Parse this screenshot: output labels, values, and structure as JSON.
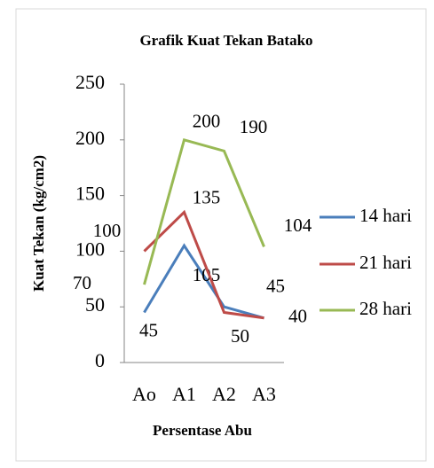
{
  "chart_data": {
    "type": "line",
    "title": "Grafik Kuat Tekan Batako",
    "x_label": "Persentase Abu",
    "y_label": "Kuat Tekan (kg/cm2)",
    "categories": [
      "Ao",
      "A1",
      "A2",
      "A3"
    ],
    "series": [
      {
        "name": "14 hari",
        "color": "#4a7ebb",
        "values": [
          45,
          105,
          50,
          40
        ],
        "value_labels": [
          "45",
          "105",
          "50",
          "40"
        ]
      },
      {
        "name": "21 hari",
        "color": "#be4b48",
        "values": [
          100,
          135,
          45,
          40
        ],
        "value_labels": [
          "100",
          "135",
          "45",
          null
        ]
      },
      {
        "name": "28 hari",
        "color": "#98b954",
        "values": [
          70,
          200,
          190,
          104
        ],
        "value_labels": [
          "70",
          "200",
          "190",
          "104"
        ]
      }
    ],
    "ylim": [
      0,
      250
    ],
    "yticks": [
      0,
      50,
      100,
      150,
      200,
      250
    ],
    "grid": false,
    "legend": "right"
  }
}
